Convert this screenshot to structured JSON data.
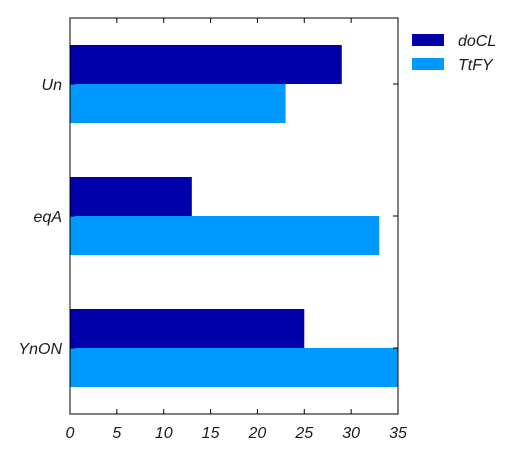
{
  "chart_data": {
    "type": "bar",
    "orientation": "horizontal",
    "categories": [
      "Un",
      "eqA",
      "YnON"
    ],
    "series": [
      {
        "name": "doCL",
        "values": [
          29,
          13,
          25
        ],
        "color": "#0000aa"
      },
      {
        "name": "TtFY",
        "values": [
          23,
          33,
          35
        ],
        "color": "#0099ff"
      }
    ],
    "xlim": [
      0,
      35
    ],
    "xticks": [
      "0",
      "5",
      "10",
      "15",
      "20",
      "25",
      "30",
      "35"
    ],
    "title": "",
    "xlabel": "",
    "ylabel": "",
    "grid": false,
    "legend_position": "outside-top-right"
  }
}
